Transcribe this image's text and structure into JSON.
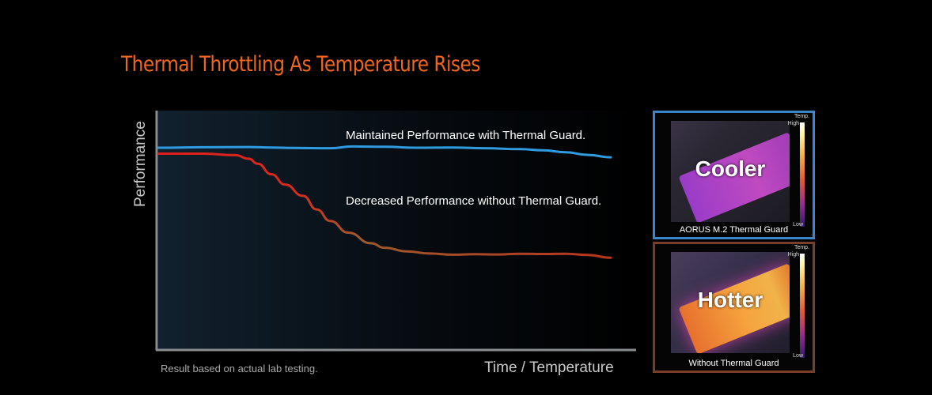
{
  "chart_data": {
    "type": "line",
    "title": "Thermal Throttling As Temperature Rises",
    "xlabel": "Time / Temperature",
    "ylabel": "Performance",
    "xlim": [
      0,
      100
    ],
    "ylim": [
      0,
      100
    ],
    "grid": false,
    "footnote": "Result based on actual lab testing.",
    "series": [
      {
        "name": "Maintained Performance with Thermal Guard.",
        "color": "#2f9be0",
        "x": [
          0,
          10,
          20,
          25,
          30,
          38,
          43,
          50,
          57,
          65,
          72,
          80,
          85,
          90,
          95,
          100
        ],
        "values": [
          84.5,
          84.7,
          84.8,
          84.6,
          84.4,
          84.3,
          85.0,
          84.9,
          84.5,
          84.6,
          84.3,
          83.9,
          83.4,
          82.6,
          81.5,
          80.5
        ]
      },
      {
        "name": "Decreased Performance without Thermal Guard.",
        "color": "#e02020",
        "x": [
          0,
          10,
          17,
          20,
          22,
          25,
          28,
          32,
          35,
          38,
          42,
          47,
          50,
          55,
          60,
          65,
          70,
          75,
          80,
          85,
          90,
          95,
          100
        ],
        "values": [
          82.0,
          82.0,
          81.4,
          79.9,
          77.8,
          73.4,
          69.1,
          64.4,
          58.7,
          53.9,
          49.0,
          44.6,
          42.7,
          41.2,
          40.3,
          39.8,
          40.0,
          39.9,
          40.2,
          40.1,
          40.2,
          39.7,
          38.5
        ]
      }
    ]
  },
  "panels": {
    "cooler": {
      "word": "Cooler",
      "caption": "AORUS M.2 Thermal Guard",
      "scale_title": "Temp.",
      "scale_high": "High",
      "scale_low": "Low",
      "border_color": "#3a86c8"
    },
    "hotter": {
      "word": "Hotter",
      "caption": "Without Thermal Guard",
      "scale_title": "Temp.",
      "scale_high": "High",
      "scale_low": "Low",
      "border_color": "#7a3d2a"
    }
  }
}
